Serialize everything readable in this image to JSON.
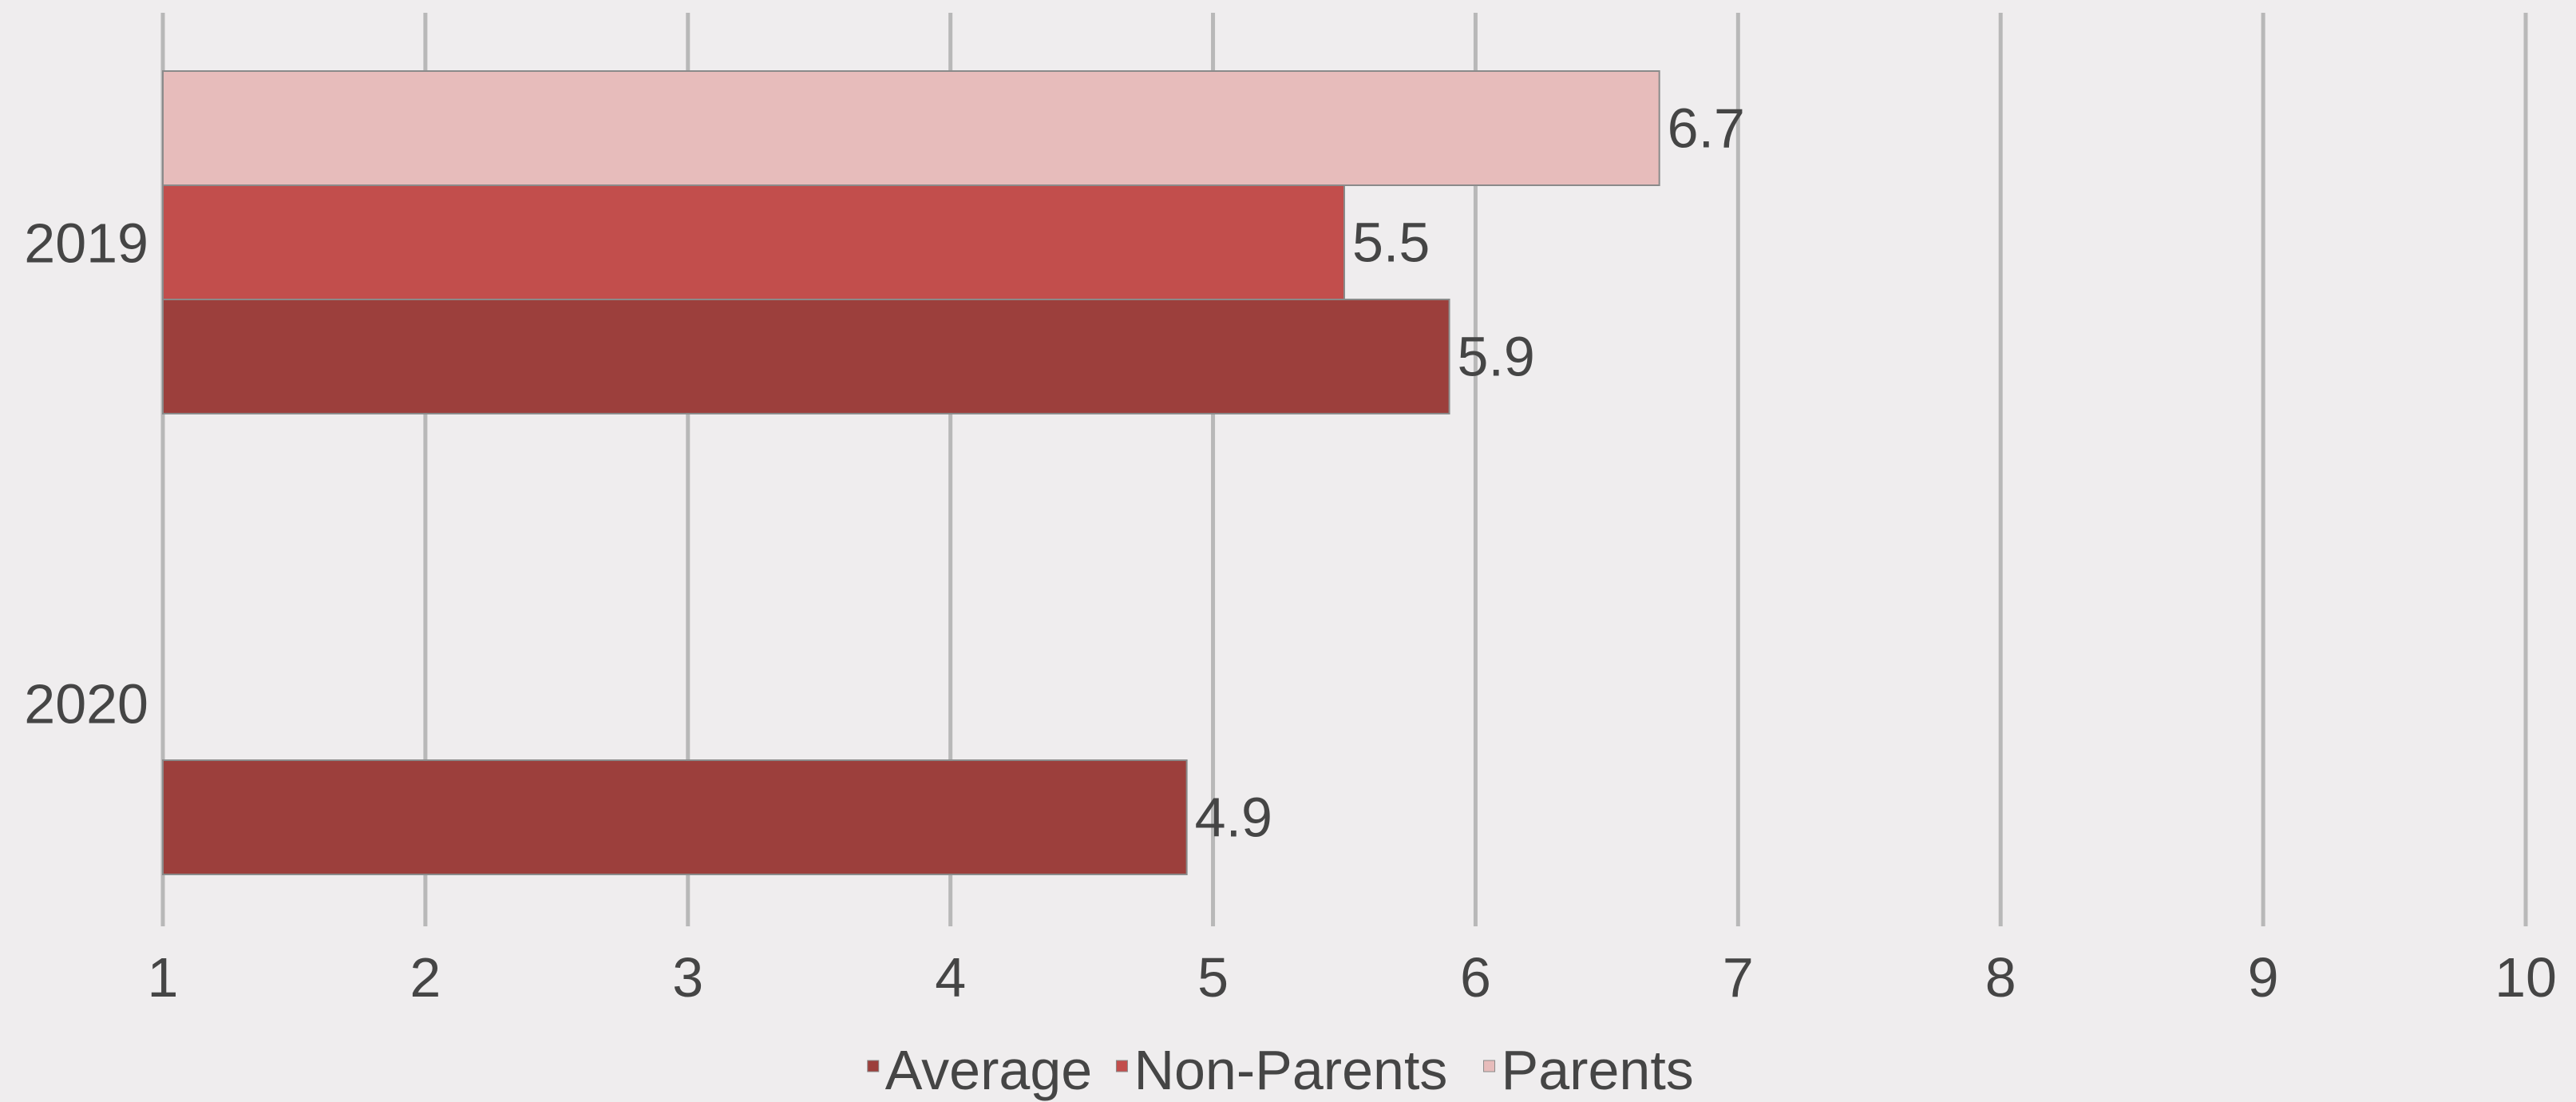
{
  "chart_data": {
    "type": "bar",
    "orientation": "horizontal",
    "categories": [
      "2019",
      "2020"
    ],
    "series": [
      {
        "name": "Average",
        "color": "#9c3f3c",
        "values": [
          5.9,
          4.9
        ]
      },
      {
        "name": "Non-Parents",
        "color": "#c24e4c",
        "values": [
          5.5,
          null
        ]
      },
      {
        "name": "Parents",
        "color": "#e7bcbb",
        "values": [
          6.7,
          null
        ]
      }
    ],
    "xlim": [
      1,
      10
    ],
    "xticks": [
      "1",
      "2",
      "3",
      "4",
      "5",
      "6",
      "7",
      "8",
      "9",
      "10"
    ],
    "grid": true,
    "legend_position": "bottom",
    "title": "",
    "xlabel": "",
    "ylabel": ""
  }
}
